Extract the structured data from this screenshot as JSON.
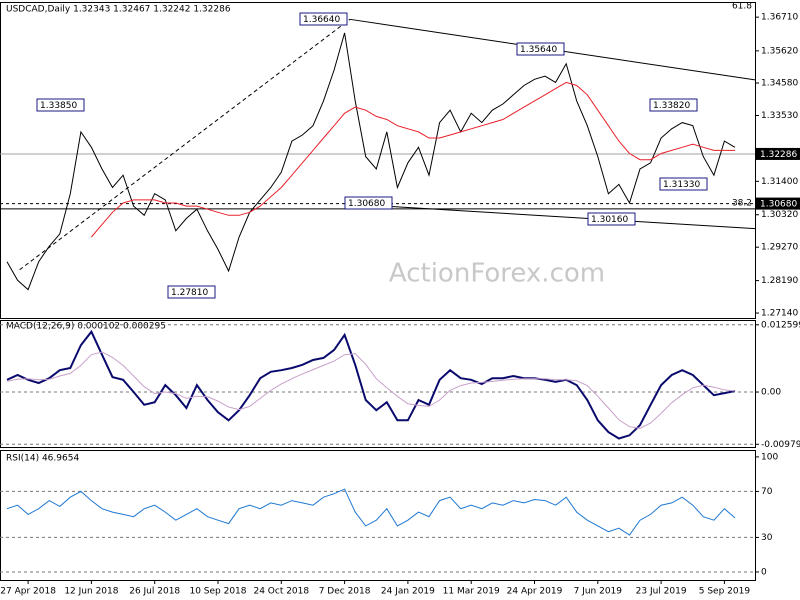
{
  "chart_data": [
    {
      "type": "line",
      "title": "USDCAD,Daily  1.32343  1.32467  1.32242  1.32286",
      "watermark": "ActionForex.com",
      "categories": [
        null,
        null,
        "27 Apr 2018",
        null,
        null,
        null,
        null,
        null,
        "12 Jun 2018",
        null,
        null,
        null,
        null,
        null,
        "26 Jul 2018",
        null,
        null,
        null,
        null,
        null,
        "10 Sep 2018",
        null,
        null,
        null,
        null,
        null,
        "24 Oct 2018",
        null,
        null,
        null,
        null,
        null,
        "7 Dec 2018",
        null,
        null,
        null,
        null,
        null,
        "24 Jan 2019",
        null,
        null,
        null,
        null,
        null,
        "11 Mar 2019",
        null,
        null,
        null,
        null,
        null,
        "24 Apr 2019",
        null,
        null,
        null,
        null,
        null,
        "7 Jun 2019",
        null,
        null,
        null,
        null,
        null,
        "23 Jul 2019",
        null,
        null,
        null,
        null,
        null,
        "5 Sep 2019",
        null
      ],
      "series": [
        {
          "color": "#000000",
          "values": [
            1.288,
            1.282,
            1.279,
            1.288,
            1.293,
            1.297,
            1.31,
            1.33,
            1.325,
            1.318,
            1.312,
            1.316,
            1.306,
            1.303,
            1.31,
            1.308,
            1.298,
            1.302,
            1.305,
            1.298,
            1.292,
            1.285,
            1.296,
            1.304,
            1.308,
            1.312,
            1.317,
            1.327,
            1.329,
            1.332,
            1.34,
            1.35,
            1.362,
            1.34,
            1.322,
            1.318,
            1.33,
            1.312,
            1.32,
            1.325,
            1.316,
            1.333,
            1.337,
            1.33,
            1.336,
            1.333,
            1.337,
            1.339,
            1.342,
            1.345,
            1.347,
            1.348,
            1.346,
            1.352,
            1.34,
            1.332,
            1.322,
            1.31,
            1.313,
            1.307,
            1.318,
            1.32,
            1.328,
            1.331,
            1.333,
            1.332,
            1.322,
            1.316,
            1.327,
            1.325
          ]
        },
        {
          "color": "#e8202a",
          "values": [
            null,
            null,
            null,
            null,
            null,
            null,
            null,
            null,
            1.296,
            1.3,
            1.304,
            1.307,
            1.308,
            1.308,
            1.308,
            1.307,
            1.307,
            1.306,
            1.306,
            1.305,
            1.304,
            1.303,
            1.303,
            1.304,
            1.306,
            1.309,
            1.312,
            1.316,
            1.32,
            1.324,
            1.328,
            1.332,
            1.336,
            1.338,
            1.337,
            1.335,
            1.334,
            1.332,
            1.331,
            1.33,
            1.328,
            1.328,
            1.329,
            1.33,
            1.331,
            1.332,
            1.333,
            1.334,
            1.336,
            1.338,
            1.34,
            1.342,
            1.344,
            1.346,
            1.345,
            1.342,
            1.337,
            1.332,
            1.327,
            1.323,
            1.321,
            1.321,
            1.323,
            1.324,
            1.325,
            1.326,
            1.325,
            1.324,
            1.324,
            1.324
          ]
        }
      ],
      "ylim": [
        1.2698,
        1.372
      ],
      "yticks": [
        {
          "value": 1.3671,
          "label": "1.36710"
        },
        {
          "value": 1.3562,
          "label": "1.35620"
        },
        {
          "value": 1.3458,
          "label": "1.34580"
        },
        {
          "value": 1.3353,
          "label": "1.33530"
        },
        {
          "value": 1.314,
          "label": "1.31400"
        },
        {
          "value": 1.3032,
          "label": "1.30320"
        },
        {
          "value": 1.2927,
          "label": "1.29270"
        },
        {
          "value": 1.2819,
          "label": "1.28190"
        },
        {
          "value": 1.2714,
          "label": "1.27140"
        }
      ],
      "trendlines": [
        {
          "x": [
            1.2,
            32.5
          ],
          "y": [
            1.2854,
            1.3664
          ],
          "dashed": true
        },
        {
          "x": [
            32.5,
            71
          ],
          "y": [
            1.3664,
            1.3468
          ]
        },
        {
          "x": [
            32,
            71
          ],
          "y": [
            1.3068,
            1.2987
          ]
        }
      ],
      "hlines": [
        {
          "value": 1.3068,
          "dashed": true,
          "color": "#000000"
        },
        {
          "value": 1.3051,
          "color": "#000000"
        },
        {
          "value": 1.32286,
          "color": "#a0a0a0"
        }
      ],
      "annotations": [
        "1.36640",
        "1.35640",
        "1.33850",
        "1.33820",
        "1.31330",
        "1.30680",
        "1.30160",
        "1.27810"
      ],
      "fib_labels": [
        61.8,
        38.2
      ],
      "price_boxes": [
        {
          "value": 1.32286,
          "label": "1.32286"
        },
        {
          "value": 1.3068,
          "label": "1.30680"
        }
      ]
    },
    {
      "type": "line",
      "title": "MACD(12,26,9) 0.000102 0.000295",
      "series": [
        {
          "color": "#0a0a6e",
          "values": [
            0.0023,
            0.0032,
            0.0023,
            0.0017,
            0.0026,
            0.0041,
            0.0045,
            0.0088,
            0.0113,
            0.007,
            0.0028,
            0.0023,
            0,
            -0.0024,
            -0.0019,
            0.0013,
            -0.0006,
            -0.003,
            0.0013,
            -0.0015,
            -0.0038,
            -0.0053,
            -0.0034,
            -0.0006,
            0.0026,
            0.0038,
            0.0041,
            0.0045,
            0.0051,
            0.006,
            0.0064,
            0.0079,
            0.0107,
            0.0051,
            -0.0015,
            -0.0034,
            -0.0019,
            -0.0053,
            -0.0053,
            -0.0015,
            -0.0024,
            0.0023,
            0.0041,
            0.0026,
            0.0023,
            0.0015,
            0.0026,
            0.0026,
            0.003,
            0.0026,
            0.0026,
            0.0023,
            0.0019,
            0.0023,
            0.0013,
            -0.0015,
            -0.0053,
            -0.0075,
            -0.0087,
            -0.0081,
            -0.0062,
            -0.0024,
            0.0013,
            0.0032,
            0.0041,
            0.0032,
            0.0013,
            -0.0006,
            -0.0002,
            0.0002
          ]
        },
        {
          "color": "#c9a0c9",
          "values": [
            0.002,
            0.0024,
            0.0025,
            0.0023,
            0.0024,
            0.003,
            0.0035,
            0.005,
            0.007,
            0.0075,
            0.0065,
            0.005,
            0.003,
            0.001,
            -0.0003,
            0,
            -0.0003,
            -0.0012,
            -0.0008,
            -0.0009,
            -0.0017,
            -0.0028,
            -0.0033,
            -0.0027,
            -0.0012,
            0.0003,
            0.0015,
            0.0025,
            0.0034,
            0.0042,
            0.005,
            0.0058,
            0.007,
            0.0072,
            0.0052,
            0.0025,
            0.0008,
            -0.0008,
            -0.0022,
            -0.0025,
            -0.0027,
            -0.0015,
            0.0003,
            0.0012,
            0.0017,
            0.0018,
            0.002,
            0.0022,
            0.0024,
            0.0025,
            0.0025,
            0.0025,
            0.0023,
            0.0023,
            0.0021,
            0.0012,
            -0.0008,
            -0.003,
            -0.0052,
            -0.0065,
            -0.0068,
            -0.0058,
            -0.004,
            -0.002,
            -0.0005,
            0.0008,
            0.0013,
            0.0009,
            0.0004,
            0.0002
          ]
        }
      ],
      "ylim": [
        -0.0103,
        0.0135
      ],
      "yticks": [
        0.012599,
        {
          "value": 0,
          "label": "0.00"
        },
        -0.00979
      ]
    },
    {
      "type": "line",
      "title": "RSI(14) 46.9654",
      "series": [
        {
          "color": "#1e78d2",
          "values": [
            55,
            58,
            50,
            55,
            62,
            57,
            65,
            70,
            62,
            55,
            52,
            50,
            48,
            55,
            58,
            52,
            45,
            50,
            55,
            48,
            45,
            42,
            55,
            58,
            55,
            60,
            58,
            62,
            60,
            58,
            65,
            68,
            72,
            52,
            40,
            45,
            55,
            40,
            45,
            52,
            48,
            62,
            65,
            55,
            58,
            55,
            60,
            58,
            62,
            60,
            63,
            62,
            58,
            65,
            52,
            45,
            40,
            35,
            38,
            32,
            45,
            50,
            58,
            60,
            65,
            58,
            48,
            45,
            55,
            47
          ]
        }
      ],
      "ylim": [
        -7,
        106
      ],
      "yticks": [
        100,
        70,
        30,
        0
      ]
    }
  ]
}
